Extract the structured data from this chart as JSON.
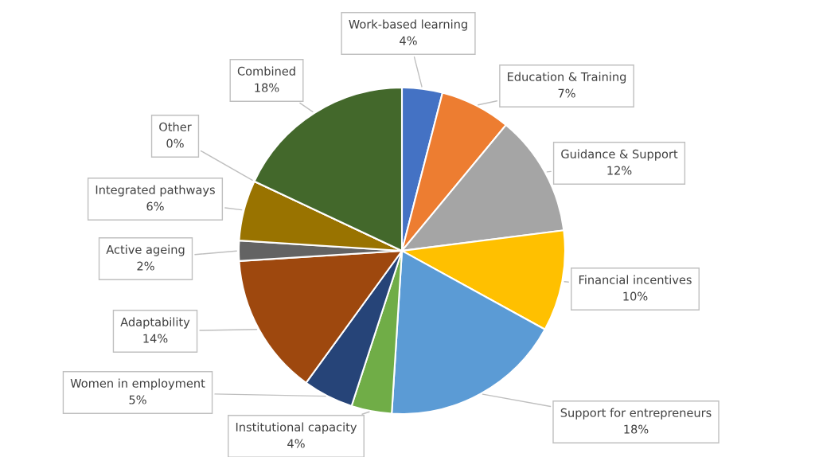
{
  "chart_data": {
    "type": "pie",
    "categories": [
      "Work-based learning",
      "Education & Training",
      "Guidance & Support",
      "Financial incentives",
      "Support for entrepreneurs",
      "Institutional capacity",
      "Women in employment",
      "Adaptability",
      "Active ageing",
      "Integrated pathways",
      "Other",
      "Combined"
    ],
    "values": [
      4,
      7,
      12,
      10,
      18,
      4,
      5,
      14,
      2,
      6,
      0,
      18
    ],
    "value_labels": [
      "4%",
      "7%",
      "12%",
      "10%",
      "18%",
      "4%",
      "5%",
      "14%",
      "2%",
      "6%",
      "0%",
      "18%"
    ],
    "colors": [
      "#4472c4",
      "#ed7d31",
      "#a5a5a5",
      "#ffc000",
      "#5b9bd5",
      "#70ad47",
      "#264478",
      "#9e480e",
      "#636363",
      "#997300",
      "#255e91",
      "#43682b"
    ],
    "legend": false
  }
}
